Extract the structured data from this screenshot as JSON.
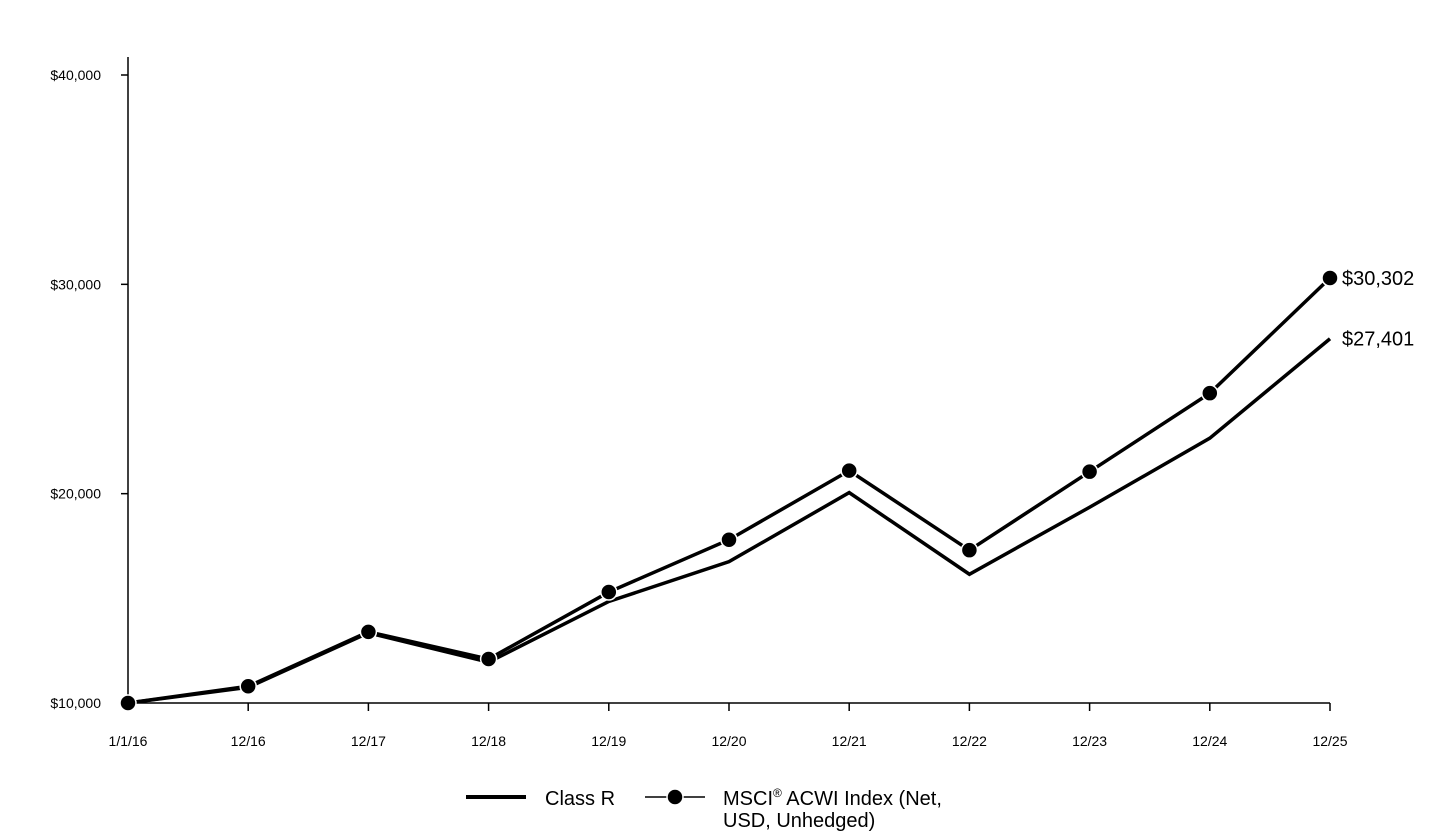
{
  "chart_data": {
    "type": "line",
    "title": "",
    "xlabel": "",
    "ylabel": "",
    "x": [
      "1/1/16",
      "12/16",
      "12/17",
      "12/18",
      "12/19",
      "12/20",
      "12/21",
      "12/22",
      "12/23",
      "12/24",
      "12/25"
    ],
    "ylim": [
      10000,
      40000
    ],
    "y_ticks": [
      {
        "value": 10000,
        "label": "$10,000"
      },
      {
        "value": 20000,
        "label": "$20,000"
      },
      {
        "value": 30000,
        "label": "$30,000"
      },
      {
        "value": 40000,
        "label": "$40,000"
      }
    ],
    "grid": false,
    "legend_position": "bottom",
    "series": [
      {
        "name": "Class R",
        "marker": "none",
        "color": "#000000",
        "values": [
          10000,
          10750,
          13350,
          11950,
          14850,
          16750,
          20050,
          16150,
          19350,
          22650,
          27401
        ],
        "end_label": "$27,401"
      },
      {
        "name": "MSCI® ACWI Index (Net, USD, Unhedged)",
        "marker": "circle",
        "color": "#000000",
        "values": [
          10000,
          10800,
          13400,
          12100,
          15300,
          17800,
          21100,
          17300,
          21050,
          24800,
          30302
        ],
        "end_label": "$30,302"
      }
    ]
  },
  "legend": {
    "class_r": "Class R",
    "msci_prefix": "MSCI",
    "msci_sup": "®",
    "msci_line1_rest": " ACWI Index (Net,",
    "msci_line2": "USD, Unhedged)"
  }
}
